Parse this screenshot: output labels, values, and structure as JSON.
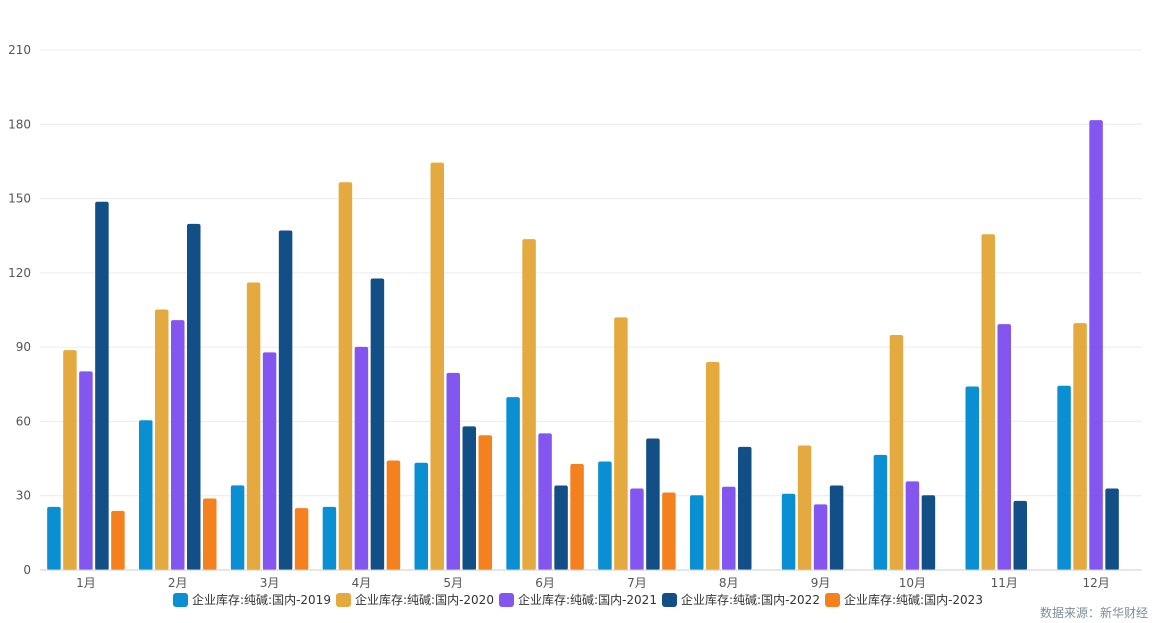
{
  "chart_data": {
    "type": "bar",
    "title": "",
    "xlabel": "",
    "ylabel": "",
    "ylim": [
      0,
      210
    ],
    "yticks": [
      0,
      30,
      60,
      90,
      120,
      150,
      180,
      210
    ],
    "grid": true,
    "legend_position": "bottom",
    "categories": [
      "1月",
      "2月",
      "3月",
      "4月",
      "5月",
      "6月",
      "7月",
      "8月",
      "9月",
      "10月",
      "11月",
      "12月"
    ],
    "series": [
      {
        "name": "企业库存:纯碱:国内-2019",
        "color": "#0a8fd2",
        "values": [
          25.5,
          60.5,
          34.2,
          25.5,
          43.3,
          69.8,
          43.8,
          30.2,
          30.8,
          46.5,
          74.1,
          74.4
        ]
      },
      {
        "name": "企业库存:纯碱:国内-2020",
        "color": "#e4aa3f",
        "values": [
          88.8,
          105.2,
          116.1,
          156.6,
          164.5,
          133.6,
          102.0,
          84.0,
          50.3,
          94.9,
          135.6,
          99.7
        ]
      },
      {
        "name": "企业库存:纯碱:国内-2021",
        "color": "#8456f0",
        "values": [
          80.2,
          100.9,
          87.9,
          90.1,
          79.6,
          55.2,
          32.9,
          33.6,
          26.5,
          35.8,
          99.3,
          181.7
        ]
      },
      {
        "name": "企业库存:纯碱:国内-2022",
        "color": "#124f86",
        "values": [
          148.7,
          139.8,
          137.1,
          117.7,
          58.0,
          34.1,
          53.1,
          49.7,
          34.1,
          30.2,
          27.9,
          32.9
        ]
      },
      {
        "name": "企业库存:纯碱:国内-2023",
        "color": "#f4811d",
        "values": [
          23.9,
          28.9,
          25.0,
          44.2,
          54.4,
          42.8,
          31.3,
          null,
          null,
          null,
          null,
          null
        ]
      }
    ],
    "source_note": "数据来源：新华财经"
  }
}
